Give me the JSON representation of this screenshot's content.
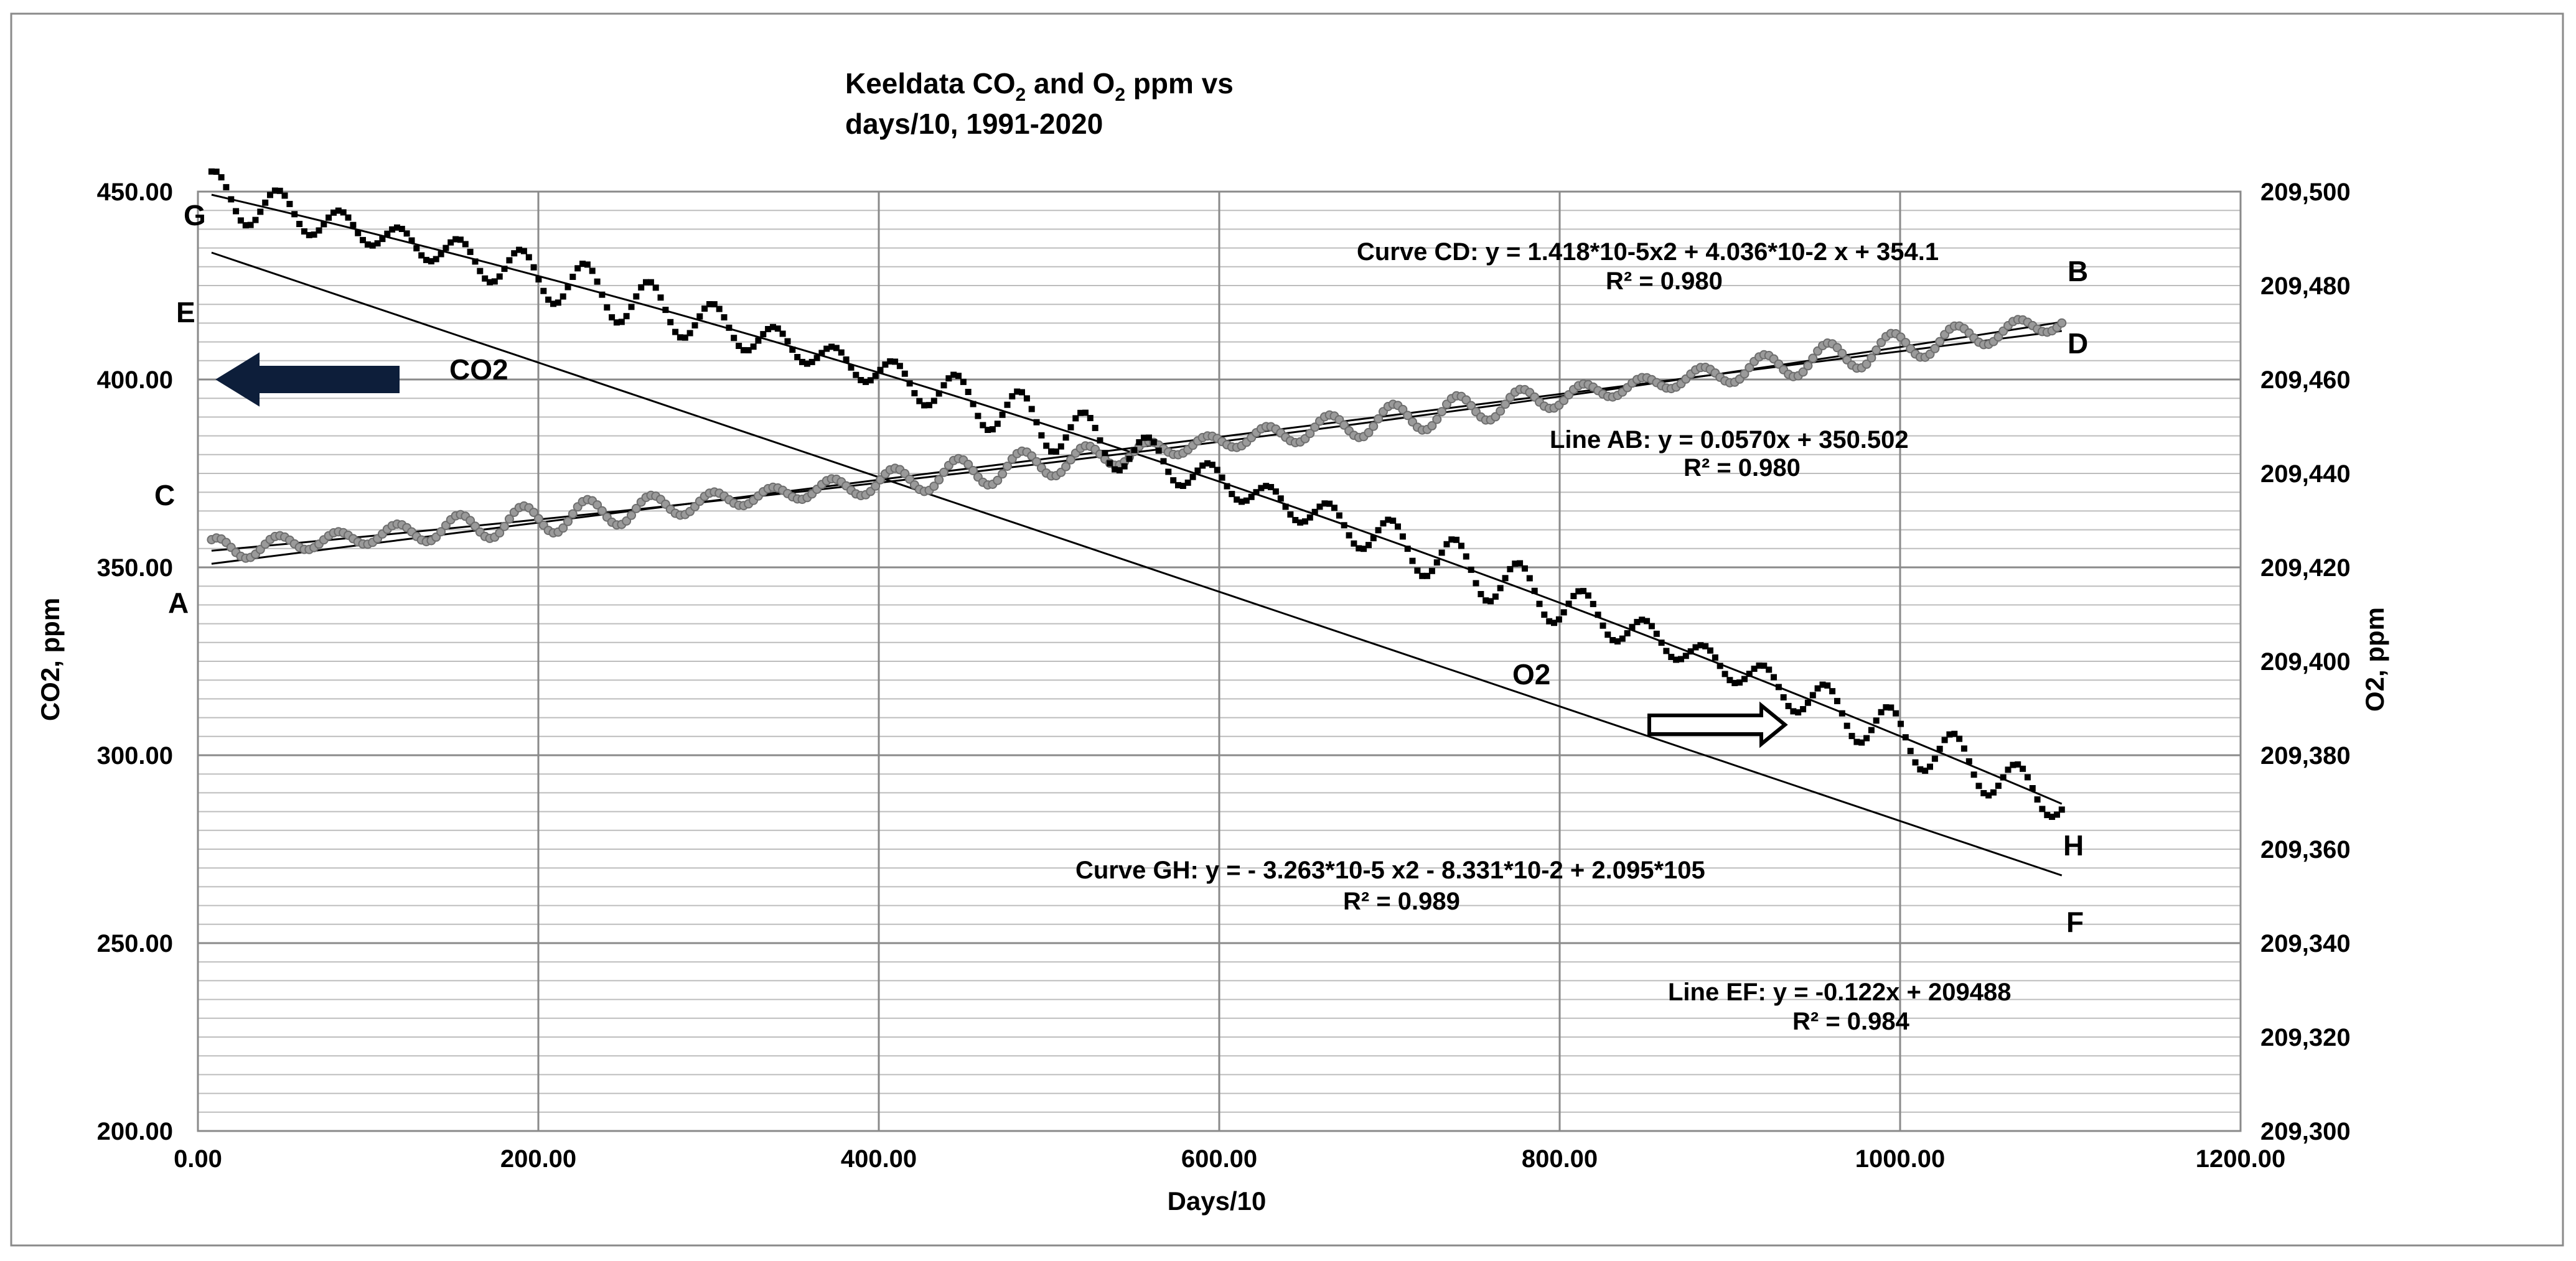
{
  "chart_data": {
    "type": "scatter",
    "title_line1": "Keeldata CO",
    "title_sub1": "2",
    "title_and": " and O",
    "title_sub2": "2",
    "title_rest": " ppm vs",
    "title_line2": "days/10,   1991-2020",
    "xlabel": "Days/10",
    "ylabel_left": "CO2, ppm",
    "ylabel_right": "O2, ppm",
    "xlim": [
      0,
      1200
    ],
    "ylim_left": [
      200,
      450
    ],
    "ylim_right": [
      209300,
      209500
    ],
    "x_ticks": [
      "0.00",
      "200.00",
      "400.00",
      "600.00",
      "800.00",
      "1000.00",
      "1200.00"
    ],
    "y_ticks_left": [
      "200.00",
      "250.00",
      "300.00",
      "350.00",
      "400.00",
      "450.00"
    ],
    "y_ticks_right": [
      "209,300",
      "209,320",
      "209,340",
      "209,360",
      "209,380",
      "209,400",
      "209,420",
      "209,440",
      "209,460",
      "209,480",
      "209,500"
    ],
    "series": [
      {
        "name": "CO2",
        "axis": "left",
        "x_start": 8,
        "x_end": 1095,
        "points": 380,
        "trend": {
          "a": 1.418e-05,
          "b": 0.04036,
          "c": 354.1
        },
        "seasonal_amplitude": 3.0,
        "marker": "gray-circle",
        "label": "CO2"
      },
      {
        "name": "O2",
        "axis": "right",
        "x_start": 8,
        "x_end": 1095,
        "points": 380,
        "trend": {
          "a": -3.263e-05,
          "b": -0.08331,
          "c": 209500
        },
        "seasonal_amplitude": 4.0,
        "marker": "black-square",
        "label": "O2"
      }
    ],
    "fits": [
      {
        "name": "Line AB",
        "axis": "left",
        "kind": "linear",
        "slope": 0.057,
        "intercept": 350.502
      },
      {
        "name": "Curve CD",
        "axis": "left",
        "kind": "quadratic",
        "a": 1.418e-05,
        "b": 0.04036,
        "c": 354.1
      },
      {
        "name": "Line EF",
        "axis": "right",
        "kind": "linear",
        "slope": -0.122,
        "intercept": 209488
      },
      {
        "name": "Curve GH",
        "axis": "right",
        "kind": "quadratic",
        "a": -3.263e-05,
        "b": -0.08331,
        "c": 209500
      }
    ],
    "annotations": {
      "curve_cd_eq": "Curve CD: y = 1.418*10-5x2 + 4.036*10-2 x + 354.1",
      "curve_cd_r2": "R² = 0.980",
      "line_ab_eq": "Line AB: y = 0.0570x + 350.502",
      "line_ab_r2": "R² = 0.980",
      "curve_gh_eq": "Curve GH: y = - 3.263*10-5 x2 - 8.331*10-2 + 2.095*105",
      "curve_gh_r2": "R² = 0.989",
      "line_ef_eq": "Line EF: y = -0.122x + 209488",
      "line_ef_r2": "R² = 0.984"
    },
    "point_labels": [
      "A",
      "B",
      "C",
      "D",
      "E",
      "F",
      "G",
      "H"
    ],
    "arrow_left": "pointing to CO2 axis",
    "arrow_right": "pointing to O2 axis",
    "colors": {
      "co2_marker": "#9a9a9a",
      "o2_marker": "#000000",
      "grid": "#b0b0b0",
      "arrow_fill": "#0d1e3a"
    }
  }
}
